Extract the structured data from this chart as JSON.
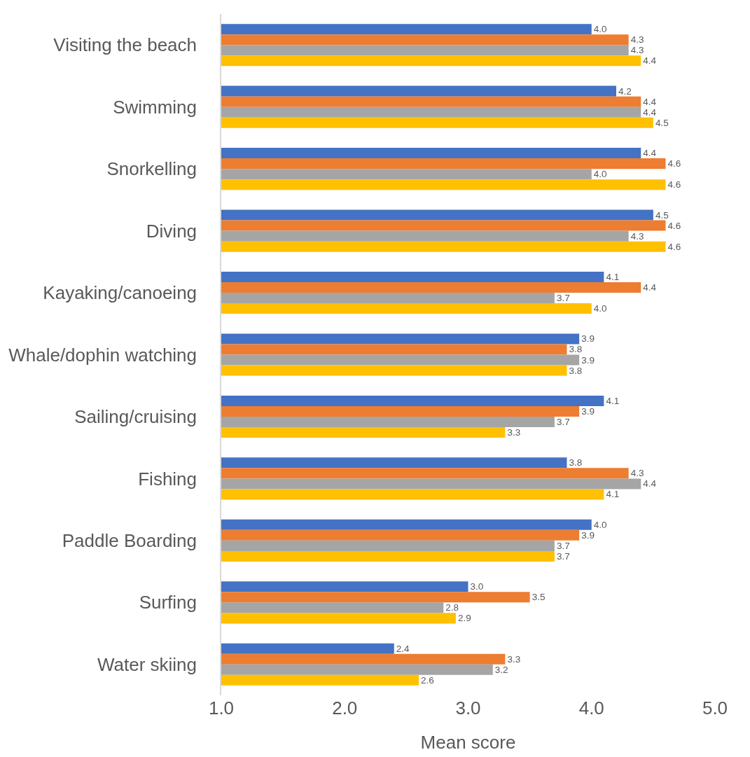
{
  "chart_data": {
    "type": "bar",
    "orientation": "horizontal",
    "xlabel": "Mean score",
    "categories": [
      "Visiting the beach",
      "Swimming",
      "Snorkelling",
      "Diving",
      "Kayaking/canoeing",
      "Whale/dophin watching",
      "Sailing/cruising",
      "Fishing",
      "Paddle Boarding",
      "Surfing",
      "Water skiing"
    ],
    "series": [
      {
        "color": "#4472c4",
        "values": [
          4.0,
          4.2,
          4.4,
          4.5,
          4.1,
          3.9,
          4.1,
          3.8,
          4.0,
          3.0,
          2.4
        ],
        "value_labels": [
          "4.0",
          "4.2",
          "4.4",
          "4.5",
          "4.1",
          "3.9",
          "4.1",
          "3.8",
          "4.0",
          "3.0",
          "2.4"
        ]
      },
      {
        "color": "#ed7d31",
        "values": [
          4.3,
          4.4,
          4.6,
          4.6,
          4.4,
          3.8,
          3.9,
          4.3,
          3.9,
          3.5,
          3.3
        ],
        "value_labels": [
          "4.3",
          "4.4",
          "4.6",
          "4.6",
          "4.4",
          "3.8",
          "3.9",
          "4.3",
          "3.9",
          "3.5",
          "3.3"
        ]
      },
      {
        "color": "#a5a5a5",
        "values": [
          4.3,
          4.4,
          4.0,
          4.3,
          3.7,
          3.9,
          3.7,
          4.4,
          3.7,
          2.8,
          3.2
        ],
        "value_labels": [
          "4.3",
          "4.4",
          "4.0",
          "4.3",
          "3.7",
          "3.9",
          "3.7",
          "4.4",
          "3.7",
          "2.8",
          "3.2"
        ]
      },
      {
        "color": "#ffc000",
        "values": [
          4.4,
          4.5,
          4.6,
          4.6,
          4.0,
          3.8,
          3.3,
          4.1,
          3.7,
          2.9,
          2.6
        ],
        "value_labels": [
          "4.4",
          "4.5",
          "4.6",
          "4.6",
          "4.0",
          "3.8",
          "3.3",
          "4.1",
          "3.7",
          "2.9",
          "2.6"
        ]
      }
    ],
    "xlim": [
      1,
      5
    ],
    "xticks": [
      {
        "value": 1,
        "label": "1.0"
      },
      {
        "value": 2,
        "label": "2.0"
      },
      {
        "value": 3,
        "label": "3.0"
      },
      {
        "value": 4,
        "label": "4.0"
      },
      {
        "value": 5,
        "label": "5.0"
      }
    ],
    "grid": false
  }
}
